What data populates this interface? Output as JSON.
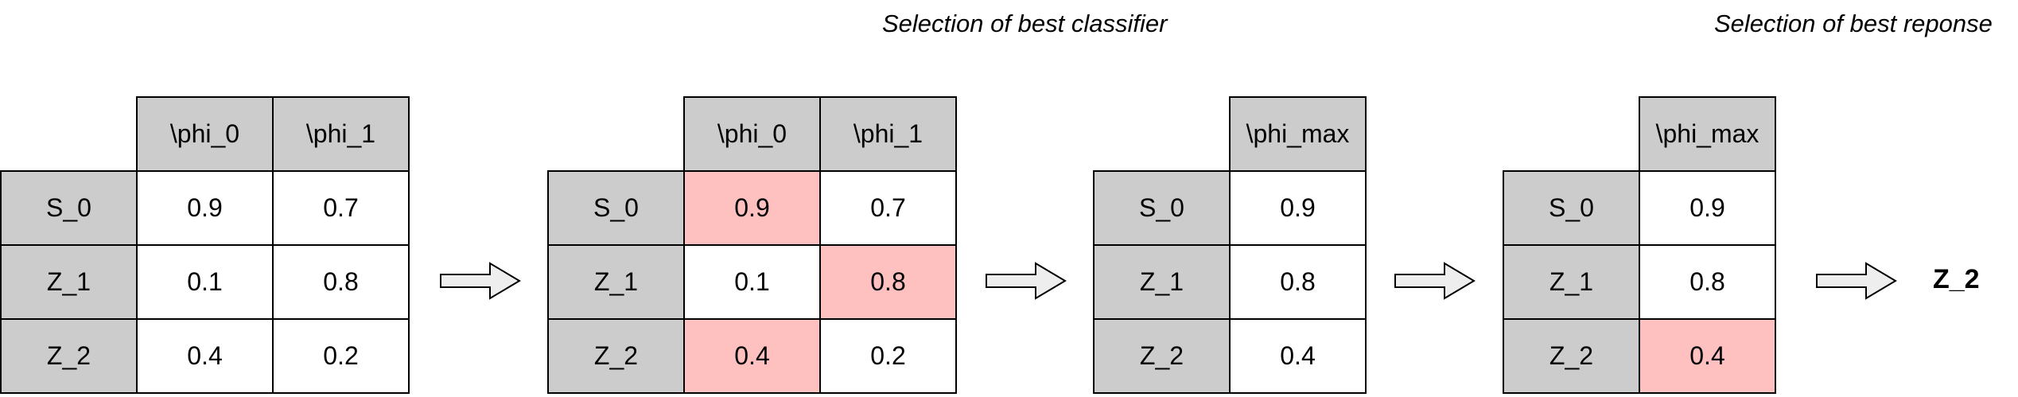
{
  "captions": {
    "classifier": "Selection of best classifier",
    "response": "Selection of best reponse"
  },
  "colors": {
    "header": "#cccccc",
    "cell": "#ffffff",
    "highlight": "#ffc0c0"
  },
  "tables": [
    {
      "columns": [
        "\\phi_0",
        "\\phi_1"
      ],
      "rows": [
        {
          "label": "S_0",
          "values": [
            "0.9",
            "0.7"
          ],
          "highlight": [
            false,
            false
          ]
        },
        {
          "label": "Z_1",
          "values": [
            "0.1",
            "0.8"
          ],
          "highlight": [
            false,
            false
          ]
        },
        {
          "label": "Z_2",
          "values": [
            "0.4",
            "0.2"
          ],
          "highlight": [
            false,
            false
          ]
        }
      ]
    },
    {
      "columns": [
        "\\phi_0",
        "\\phi_1"
      ],
      "rows": [
        {
          "label": "S_0",
          "values": [
            "0.9",
            "0.7"
          ],
          "highlight": [
            true,
            false
          ]
        },
        {
          "label": "Z_1",
          "values": [
            "0.1",
            "0.8"
          ],
          "highlight": [
            false,
            true
          ]
        },
        {
          "label": "Z_2",
          "values": [
            "0.4",
            "0.2"
          ],
          "highlight": [
            true,
            false
          ]
        }
      ]
    },
    {
      "columns": [
        "\\phi_max"
      ],
      "rows": [
        {
          "label": "S_0",
          "values": [
            "0.9"
          ],
          "highlight": [
            false
          ]
        },
        {
          "label": "Z_1",
          "values": [
            "0.8"
          ],
          "highlight": [
            false
          ]
        },
        {
          "label": "Z_2",
          "values": [
            "0.4"
          ],
          "highlight": [
            false
          ]
        }
      ]
    },
    {
      "columns": [
        "\\phi_max"
      ],
      "rows": [
        {
          "label": "S_0",
          "values": [
            "0.9"
          ],
          "highlight": [
            false
          ]
        },
        {
          "label": "Z_1",
          "values": [
            "0.8"
          ],
          "highlight": [
            false
          ]
        },
        {
          "label": "Z_2",
          "values": [
            "0.4"
          ],
          "highlight": [
            true
          ]
        }
      ]
    }
  ],
  "result": "Z_2"
}
